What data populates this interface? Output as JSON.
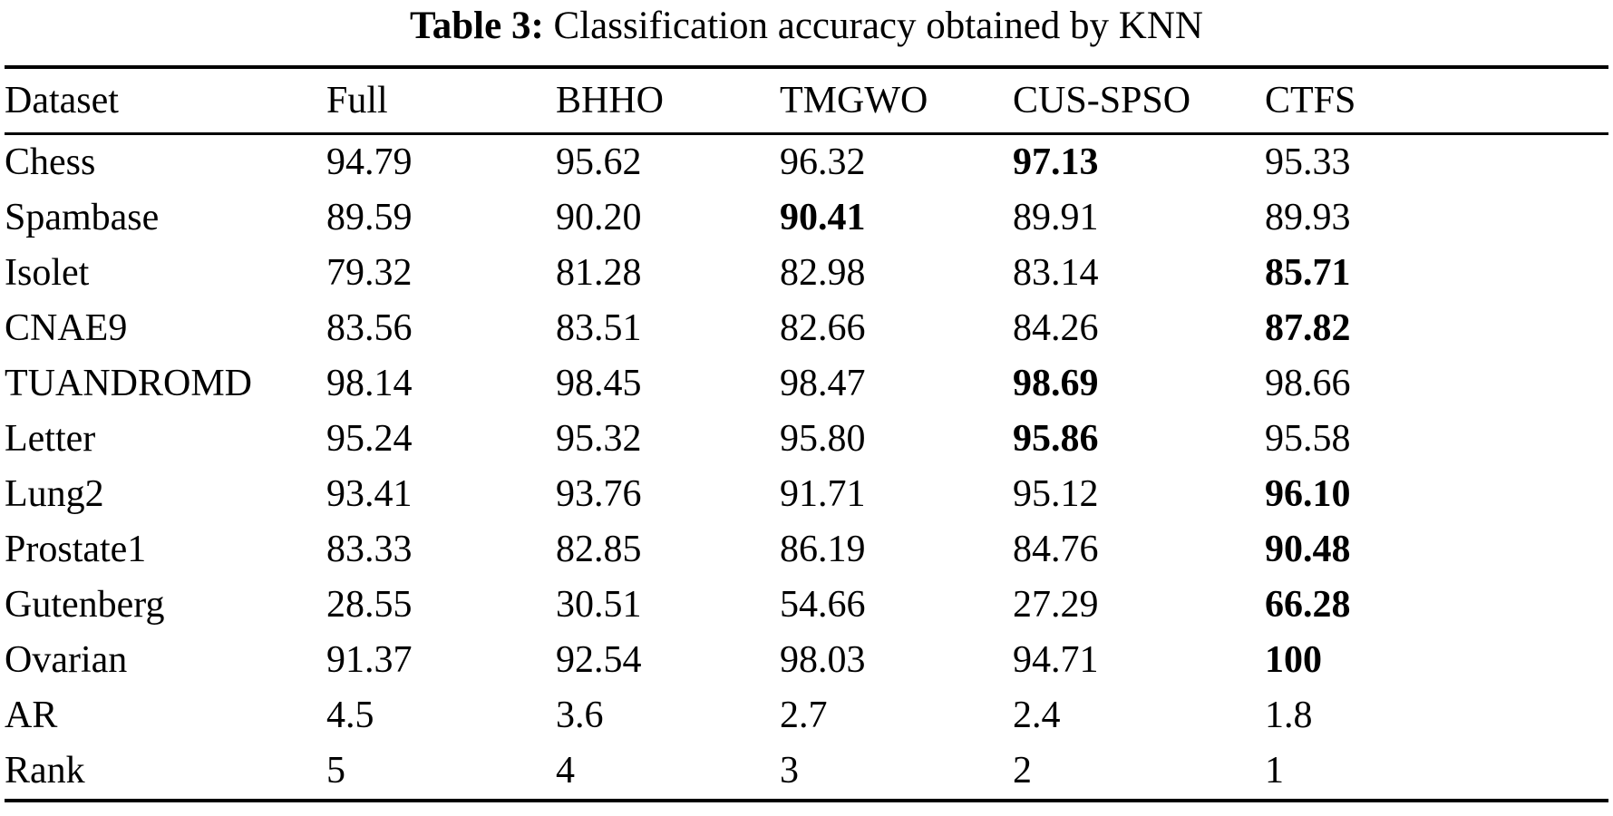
{
  "page": {
    "background_color": "#ffffff",
    "text_color": "#000000"
  },
  "caption": {
    "label": "Table 3:",
    "text": "Classification accuracy obtained by KNN"
  },
  "chart_data": {
    "type": "table",
    "title": "Table 3: Classification accuracy obtained by KNN",
    "columns": [
      "Dataset",
      "Full",
      "BHHO",
      "TMGWO",
      "CUS-SPSO",
      "CTFS"
    ],
    "rows": [
      {
        "dataset": "Chess",
        "values": [
          "94.79",
          "95.62",
          "96.32",
          "97.13",
          "95.33"
        ],
        "bold": 3
      },
      {
        "dataset": "Spambase",
        "values": [
          "89.59",
          "90.20",
          "90.41",
          "89.91",
          "89.93"
        ],
        "bold": 2
      },
      {
        "dataset": "Isolet",
        "values": [
          "79.32",
          "81.28",
          "82.98",
          "83.14",
          "85.71"
        ],
        "bold": 4
      },
      {
        "dataset": "CNAE9",
        "values": [
          "83.56",
          "83.51",
          "82.66",
          "84.26",
          "87.82"
        ],
        "bold": 4
      },
      {
        "dataset": "TUANDROMD",
        "values": [
          "98.14",
          "98.45",
          "98.47",
          "98.69",
          "98.66"
        ],
        "bold": 3
      },
      {
        "dataset": "Letter",
        "values": [
          "95.24",
          "95.32",
          "95.80",
          "95.86",
          "95.58"
        ],
        "bold": 3
      },
      {
        "dataset": "Lung2",
        "values": [
          "93.41",
          "93.76",
          "91.71",
          "95.12",
          "96.10"
        ],
        "bold": 4
      },
      {
        "dataset": "Prostate1",
        "values": [
          "83.33",
          "82.85",
          "86.19",
          "84.76",
          "90.48"
        ],
        "bold": 4
      },
      {
        "dataset": "Gutenberg",
        "values": [
          "28.55",
          "30.51",
          "54.66",
          "27.29",
          "66.28"
        ],
        "bold": 4
      },
      {
        "dataset": "Ovarian",
        "values": [
          "91.37",
          "92.54",
          "98.03",
          "94.71",
          "100"
        ],
        "bold": 4
      },
      {
        "dataset": "AR",
        "values": [
          "4.5",
          "3.6",
          "2.7",
          "2.4",
          "1.8"
        ],
        "bold": -1
      },
      {
        "dataset": "Rank",
        "values": [
          "5",
          "4",
          "3",
          "2",
          "1"
        ],
        "bold": -1
      }
    ]
  }
}
